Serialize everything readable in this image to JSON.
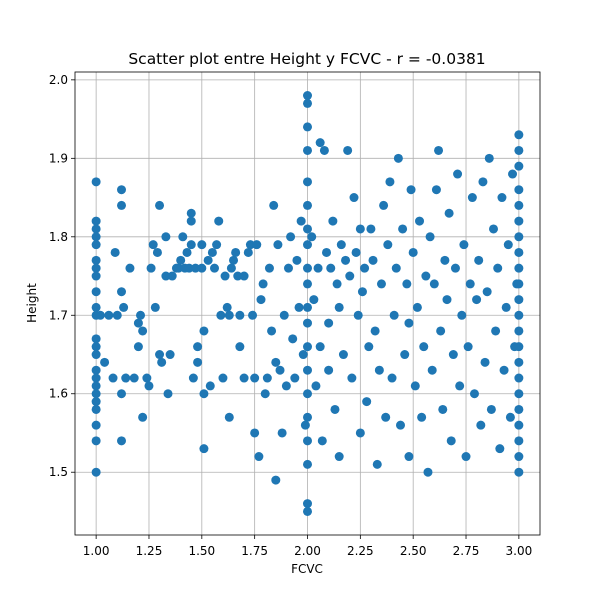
{
  "chart_data": {
    "type": "scatter",
    "title": "Scatter plot entre Height y FCVC - r = -0.0381",
    "xlabel": "FCVC",
    "ylabel": "Height",
    "xlim": [
      0.9,
      3.1
    ],
    "ylim": [
      1.42,
      2.01
    ],
    "xticks": [
      "1.00",
      "1.25",
      "1.50",
      "1.75",
      "2.00",
      "2.25",
      "2.50",
      "2.75",
      "3.00"
    ],
    "yticks": [
      "1.5",
      "1.6",
      "1.7",
      "1.8",
      "1.9",
      "2.0"
    ],
    "xtick_values": [
      1.0,
      1.25,
      1.5,
      1.75,
      2.0,
      2.25,
      2.5,
      2.75,
      3.0
    ],
    "ytick_values": [
      1.5,
      1.6,
      1.7,
      1.8,
      1.9,
      2.0
    ],
    "grid": true,
    "color": "#1f77b4",
    "series": [
      {
        "points": [
          [
            1.0,
            1.87
          ],
          [
            1.0,
            1.82
          ],
          [
            1.0,
            1.81
          ],
          [
            1.0,
            1.8
          ],
          [
            1.0,
            1.79
          ],
          [
            1.0,
            1.77
          ],
          [
            1.0,
            1.76
          ],
          [
            1.0,
            1.75
          ],
          [
            1.0,
            1.73
          ],
          [
            1.0,
            1.71
          ],
          [
            1.0,
            1.7
          ],
          [
            1.0,
            1.67
          ],
          [
            1.0,
            1.66
          ],
          [
            1.0,
            1.65
          ],
          [
            1.0,
            1.63
          ],
          [
            1.0,
            1.62
          ],
          [
            1.0,
            1.61
          ],
          [
            1.0,
            1.6
          ],
          [
            1.0,
            1.59
          ],
          [
            1.0,
            1.58
          ],
          [
            1.0,
            1.56
          ],
          [
            1.0,
            1.54
          ],
          [
            1.0,
            1.5
          ],
          [
            1.02,
            1.7
          ],
          [
            1.04,
            1.64
          ],
          [
            1.06,
            1.7
          ],
          [
            1.08,
            1.62
          ],
          [
            1.09,
            1.78
          ],
          [
            1.1,
            1.7
          ],
          [
            1.12,
            1.86
          ],
          [
            1.12,
            1.84
          ],
          [
            1.12,
            1.73
          ],
          [
            1.13,
            1.71
          ],
          [
            1.12,
            1.6
          ],
          [
            1.12,
            1.54
          ],
          [
            1.14,
            1.62
          ],
          [
            1.16,
            1.76
          ],
          [
            1.18,
            1.62
          ],
          [
            1.2,
            1.69
          ],
          [
            1.21,
            1.7
          ],
          [
            1.22,
            1.68
          ],
          [
            1.2,
            1.66
          ],
          [
            1.22,
            1.57
          ],
          [
            1.24,
            1.62
          ],
          [
            1.25,
            1.61
          ],
          [
            1.26,
            1.76
          ],
          [
            1.27,
            1.79
          ],
          [
            1.28,
            1.71
          ],
          [
            1.29,
            1.78
          ],
          [
            1.3,
            1.84
          ],
          [
            1.3,
            1.65
          ],
          [
            1.31,
            1.64
          ],
          [
            1.33,
            1.75
          ],
          [
            1.33,
            1.8
          ],
          [
            1.34,
            1.6
          ],
          [
            1.35,
            1.65
          ],
          [
            1.36,
            1.75
          ],
          [
            1.38,
            1.76
          ],
          [
            1.39,
            1.76
          ],
          [
            1.4,
            1.77
          ],
          [
            1.41,
            1.8
          ],
          [
            1.42,
            1.76
          ],
          [
            1.43,
            1.78
          ],
          [
            1.44,
            1.76
          ],
          [
            1.45,
            1.83
          ],
          [
            1.45,
            1.82
          ],
          [
            1.45,
            1.79
          ],
          [
            1.46,
            1.62
          ],
          [
            1.47,
            1.76
          ],
          [
            1.48,
            1.66
          ],
          [
            1.48,
            1.64
          ],
          [
            1.5,
            1.76
          ],
          [
            1.5,
            1.79
          ],
          [
            1.51,
            1.68
          ],
          [
            1.51,
            1.6
          ],
          [
            1.51,
            1.53
          ],
          [
            1.53,
            1.77
          ],
          [
            1.54,
            1.61
          ],
          [
            1.55,
            1.78
          ],
          [
            1.56,
            1.76
          ],
          [
            1.57,
            1.79
          ],
          [
            1.58,
            1.82
          ],
          [
            1.59,
            1.7
          ],
          [
            1.6,
            1.62
          ],
          [
            1.61,
            1.75
          ],
          [
            1.62,
            1.71
          ],
          [
            1.63,
            1.7
          ],
          [
            1.63,
            1.57
          ],
          [
            1.64,
            1.76
          ],
          [
            1.65,
            1.77
          ],
          [
            1.66,
            1.78
          ],
          [
            1.67,
            1.75
          ],
          [
            1.68,
            1.7
          ],
          [
            1.68,
            1.66
          ],
          [
            1.7,
            1.75
          ],
          [
            1.7,
            1.62
          ],
          [
            1.72,
            1.78
          ],
          [
            1.73,
            1.79
          ],
          [
            1.74,
            1.7
          ],
          [
            1.75,
            1.62
          ],
          [
            1.75,
            1.55
          ],
          [
            1.76,
            1.79
          ],
          [
            1.77,
            1.52
          ],
          [
            1.78,
            1.72
          ],
          [
            1.79,
            1.74
          ],
          [
            1.8,
            1.6
          ],
          [
            1.81,
            1.62
          ],
          [
            1.82,
            1.76
          ],
          [
            1.83,
            1.68
          ],
          [
            1.84,
            1.84
          ],
          [
            1.85,
            1.64
          ],
          [
            1.85,
            1.49
          ],
          [
            1.86,
            1.79
          ],
          [
            1.87,
            1.63
          ],
          [
            1.88,
            1.55
          ],
          [
            1.89,
            1.7
          ],
          [
            1.9,
            1.61
          ],
          [
            1.91,
            1.76
          ],
          [
            1.92,
            1.8
          ],
          [
            1.93,
            1.67
          ],
          [
            1.94,
            1.62
          ],
          [
            1.95,
            1.77
          ],
          [
            1.96,
            1.71
          ],
          [
            1.97,
            1.82
          ],
          [
            1.98,
            1.65
          ],
          [
            1.99,
            1.56
          ],
          [
            2.0,
            1.98
          ],
          [
            2.0,
            1.97
          ],
          [
            2.0,
            1.94
          ],
          [
            2.0,
            1.91
          ],
          [
            2.0,
            1.87
          ],
          [
            2.0,
            1.84
          ],
          [
            2.0,
            1.81
          ],
          [
            2.0,
            1.79
          ],
          [
            2.0,
            1.76
          ],
          [
            2.0,
            1.74
          ],
          [
            2.0,
            1.71
          ],
          [
            2.0,
            1.69
          ],
          [
            2.0,
            1.66
          ],
          [
            2.0,
            1.63
          ],
          [
            2.0,
            1.6
          ],
          [
            2.0,
            1.57
          ],
          [
            2.0,
            1.54
          ],
          [
            2.0,
            1.51
          ],
          [
            2.0,
            1.46
          ],
          [
            2.0,
            1.45
          ],
          [
            2.02,
            1.8
          ],
          [
            2.03,
            1.72
          ],
          [
            2.04,
            1.61
          ],
          [
            2.05,
            1.76
          ],
          [
            2.06,
            1.92
          ],
          [
            2.06,
            1.66
          ],
          [
            2.07,
            1.54
          ],
          [
            2.08,
            1.91
          ],
          [
            2.09,
            1.78
          ],
          [
            2.1,
            1.69
          ],
          [
            2.1,
            1.63
          ],
          [
            2.11,
            1.76
          ],
          [
            2.12,
            1.82
          ],
          [
            2.13,
            1.58
          ],
          [
            2.14,
            1.74
          ],
          [
            2.15,
            1.71
          ],
          [
            2.15,
            1.52
          ],
          [
            2.16,
            1.79
          ],
          [
            2.17,
            1.65
          ],
          [
            2.18,
            1.77
          ],
          [
            2.19,
            1.91
          ],
          [
            2.2,
            1.75
          ],
          [
            2.21,
            1.62
          ],
          [
            2.22,
            1.85
          ],
          [
            2.23,
            1.78
          ],
          [
            2.24,
            1.7
          ],
          [
            2.25,
            1.55
          ],
          [
            2.25,
            1.81
          ],
          [
            2.26,
            1.73
          ],
          [
            2.27,
            1.76
          ],
          [
            2.28,
            1.59
          ],
          [
            2.29,
            1.66
          ],
          [
            2.3,
            1.81
          ],
          [
            2.31,
            1.77
          ],
          [
            2.32,
            1.68
          ],
          [
            2.33,
            1.51
          ],
          [
            2.34,
            1.63
          ],
          [
            2.35,
            1.74
          ],
          [
            2.36,
            1.84
          ],
          [
            2.37,
            1.57
          ],
          [
            2.38,
            1.79
          ],
          [
            2.39,
            1.87
          ],
          [
            2.4,
            1.62
          ],
          [
            2.41,
            1.7
          ],
          [
            2.42,
            1.76
          ],
          [
            2.43,
            1.9
          ],
          [
            2.44,
            1.56
          ],
          [
            2.45,
            1.81
          ],
          [
            2.46,
            1.65
          ],
          [
            2.47,
            1.74
          ],
          [
            2.48,
            1.69
          ],
          [
            2.48,
            1.52
          ],
          [
            2.49,
            1.86
          ],
          [
            2.5,
            1.78
          ],
          [
            2.51,
            1.61
          ],
          [
            2.52,
            1.71
          ],
          [
            2.53,
            1.82
          ],
          [
            2.54,
            1.57
          ],
          [
            2.55,
            1.66
          ],
          [
            2.56,
            1.75
          ],
          [
            2.57,
            1.5
          ],
          [
            2.58,
            1.8
          ],
          [
            2.59,
            1.63
          ],
          [
            2.6,
            1.74
          ],
          [
            2.61,
            1.86
          ],
          [
            2.62,
            1.91
          ],
          [
            2.63,
            1.68
          ],
          [
            2.64,
            1.58
          ],
          [
            2.65,
            1.77
          ],
          [
            2.66,
            1.72
          ],
          [
            2.67,
            1.83
          ],
          [
            2.68,
            1.54
          ],
          [
            2.69,
            1.65
          ],
          [
            2.7,
            1.76
          ],
          [
            2.71,
            1.88
          ],
          [
            2.72,
            1.61
          ],
          [
            2.73,
            1.7
          ],
          [
            2.74,
            1.79
          ],
          [
            2.75,
            1.52
          ],
          [
            2.76,
            1.66
          ],
          [
            2.77,
            1.74
          ],
          [
            2.78,
            1.85
          ],
          [
            2.79,
            1.6
          ],
          [
            2.8,
            1.72
          ],
          [
            2.81,
            1.77
          ],
          [
            2.82,
            1.56
          ],
          [
            2.83,
            1.87
          ],
          [
            2.84,
            1.64
          ],
          [
            2.85,
            1.73
          ],
          [
            2.86,
            1.9
          ],
          [
            2.87,
            1.58
          ],
          [
            2.88,
            1.81
          ],
          [
            2.89,
            1.68
          ],
          [
            2.9,
            1.76
          ],
          [
            2.91,
            1.53
          ],
          [
            2.92,
            1.85
          ],
          [
            2.93,
            1.63
          ],
          [
            2.94,
            1.71
          ],
          [
            2.95,
            1.79
          ],
          [
            2.96,
            1.57
          ],
          [
            2.97,
            1.88
          ],
          [
            2.98,
            1.66
          ],
          [
            2.99,
            1.74
          ],
          [
            3.0,
            1.93
          ],
          [
            3.0,
            1.91
          ],
          [
            3.0,
            1.89
          ],
          [
            3.0,
            1.86
          ],
          [
            3.0,
            1.84
          ],
          [
            3.0,
            1.82
          ],
          [
            3.0,
            1.8
          ],
          [
            3.0,
            1.78
          ],
          [
            3.0,
            1.76
          ],
          [
            3.0,
            1.74
          ],
          [
            3.0,
            1.72
          ],
          [
            3.0,
            1.7
          ],
          [
            3.0,
            1.68
          ],
          [
            3.0,
            1.66
          ],
          [
            3.0,
            1.64
          ],
          [
            3.0,
            1.62
          ],
          [
            3.0,
            1.6
          ],
          [
            3.0,
            1.58
          ],
          [
            3.0,
            1.56
          ],
          [
            3.0,
            1.54
          ],
          [
            3.0,
            1.52
          ],
          [
            3.0,
            1.5
          ]
        ]
      }
    ]
  }
}
